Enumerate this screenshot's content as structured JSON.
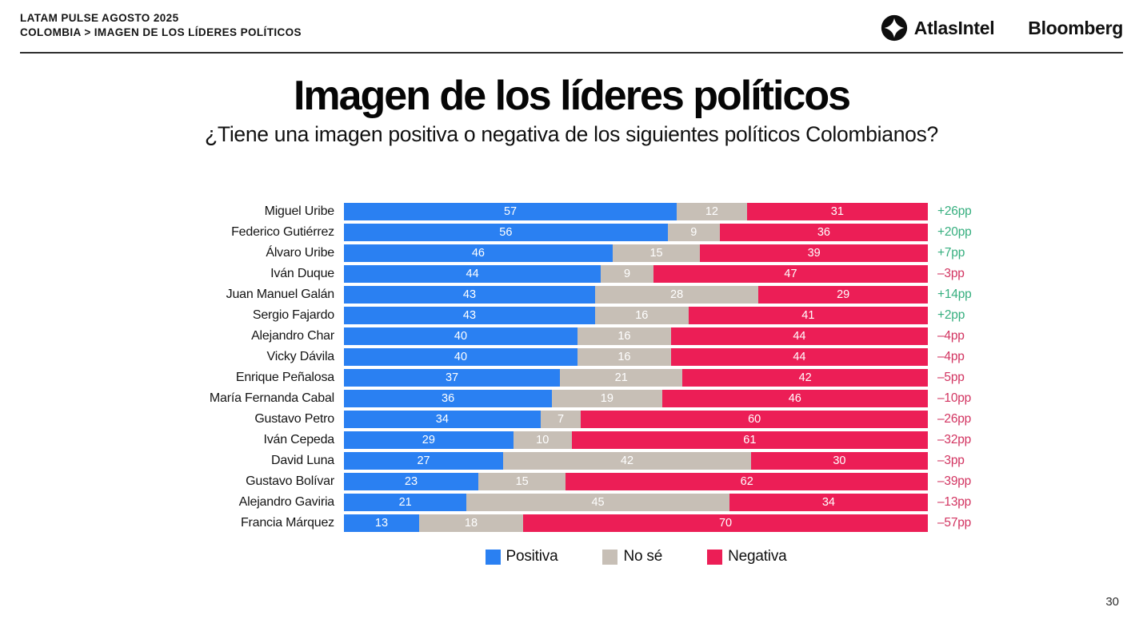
{
  "header": {
    "line1": "LATAM PULSE AGOSTO 2025",
    "line2": "COLOMBIA > IMAGEN DE LOS LÍDERES POLÍTICOS",
    "brand1": "AtlasIntel",
    "brand2": "Bloomberg"
  },
  "title": "Imagen de los líderes políticos",
  "subtitle": "¿Tiene una imagen positiva o negativa de los siguientes políticos Colombianos?",
  "colors": {
    "positive": "#2A80F2",
    "no_se": "#C7BFB6",
    "negative": "#EC1E56",
    "delta_positive": "#35AE7E",
    "delta_negative": "#D23360"
  },
  "legend": [
    {
      "label": "Positiva",
      "color": "#2A80F2"
    },
    {
      "label": "No sé",
      "color": "#C7BFB6"
    },
    {
      "label": "Negativa",
      "color": "#EC1E56"
    }
  ],
  "chart_data": {
    "type": "bar",
    "orientation": "horizontal",
    "stacked": true,
    "normalized_to_100": true,
    "categories": [
      "Miguel Uribe",
      "Federico Gutiérrez",
      "Álvaro Uribe",
      "Iván Duque",
      "Juan Manuel Galán",
      "Sergio Fajardo",
      "Alejandro Char",
      "Vicky Dávila",
      "Enrique Peñalosa",
      "María Fernanda Cabal",
      "Gustavo Petro",
      "Iván Cepeda",
      "David Luna",
      "Gustavo Bolívar",
      "Alejandro Gaviria",
      "Francia Márquez"
    ],
    "series": [
      {
        "name": "Positiva",
        "values": [
          57,
          56,
          46,
          44,
          43,
          43,
          40,
          40,
          37,
          36,
          34,
          29,
          27,
          23,
          21,
          13
        ]
      },
      {
        "name": "No sé",
        "values": [
          12,
          9,
          15,
          9,
          28,
          16,
          16,
          16,
          21,
          19,
          7,
          10,
          42,
          15,
          45,
          18
        ]
      },
      {
        "name": "Negativa",
        "values": [
          31,
          36,
          39,
          47,
          29,
          41,
          44,
          44,
          42,
          46,
          60,
          61,
          30,
          62,
          34,
          70
        ]
      }
    ],
    "deltas": [
      "+26pp",
      "+20pp",
      "+7pp",
      "–3pp",
      "+14pp",
      "+2pp",
      "–4pp",
      "–4pp",
      "–5pp",
      "–10pp",
      "–26pp",
      "–32pp",
      "–3pp",
      "–39pp",
      "–13pp",
      "–57pp"
    ],
    "legend_position": "bottom",
    "grid": false
  },
  "page_number": "30"
}
